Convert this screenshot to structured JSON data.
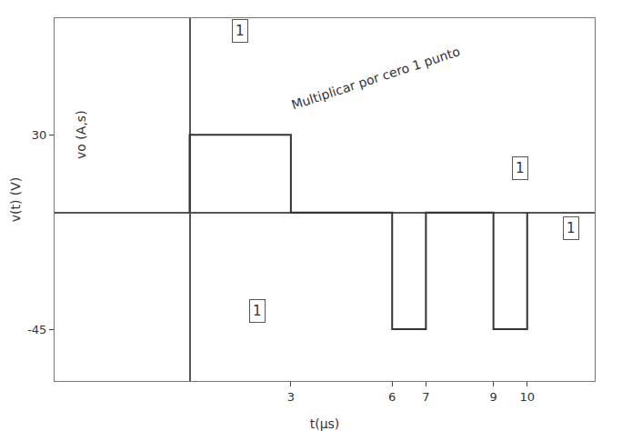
{
  "chart_data": {
    "type": "line",
    "x_label": "t(µs)",
    "y_label": "v(t) (V)",
    "x": [
      0,
      0,
      3,
      3,
      6,
      6,
      7,
      7,
      9,
      9,
      10,
      10
    ],
    "values": [
      0,
      30,
      30,
      0,
      0,
      -45,
      -45,
      0,
      0,
      -45,
      -45,
      0
    ],
    "color": "#333333",
    "xlim": [
      -4,
      12
    ],
    "ylim": [
      -65,
      75
    ],
    "xticks": [
      3,
      6,
      7,
      9,
      10
    ],
    "yticks": [
      -45,
      30
    ],
    "grid": false,
    "annotations": [
      {
        "text": "Multiplicar por cero 1 punto",
        "x": 5.5,
        "y": 52
      },
      {
        "text": "1",
        "x": 1.5,
        "y": 70
      },
      {
        "text": "1",
        "x": 9.8,
        "y": 17
      },
      {
        "text": "1",
        "x": 11.3,
        "y": -6
      },
      {
        "text": "1",
        "x": 2,
        "y": -38
      },
      {
        "text": "vo (A,s)",
        "x": -3.2,
        "y": 30
      }
    ]
  }
}
